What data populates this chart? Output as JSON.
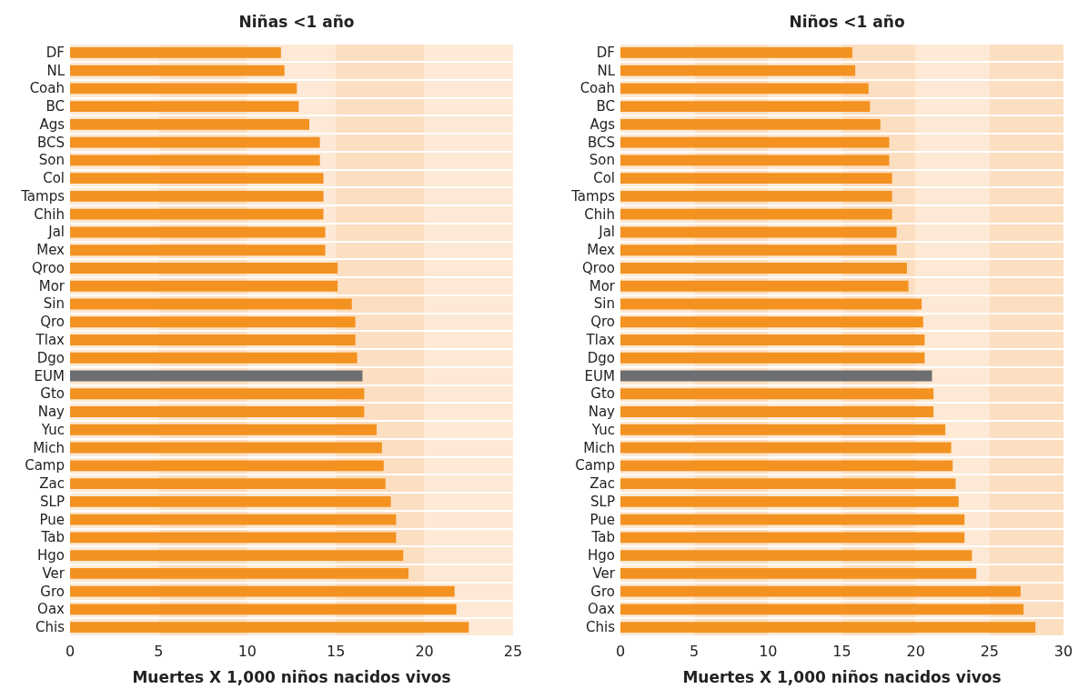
{
  "chart_data": [
    {
      "type": "bar",
      "orientation": "horizontal",
      "title": "Niñas <1 año",
      "xlabel": "Muertes X 1,000 niños nacidos vivos",
      "categories": [
        "DF",
        "NL",
        "Coah",
        "BC",
        "Ags",
        "BCS",
        "Son",
        "Col",
        "Tamps",
        "Chih",
        "Jal",
        "Mex",
        "Qroo",
        "Mor",
        "Sin",
        "Qro",
        "Tlax",
        "Dgo",
        "EUM",
        "Gto",
        "Nay",
        "Yuc",
        "Mich",
        "Camp",
        "Zac",
        "SLP",
        "Pue",
        "Tab",
        "Hgo",
        "Ver",
        "Gro",
        "Oax",
        "Chis"
      ],
      "values": [
        11.9,
        12.1,
        12.8,
        12.9,
        13.5,
        14.1,
        14.1,
        14.3,
        14.3,
        14.3,
        14.4,
        14.4,
        15.1,
        15.1,
        15.9,
        16.1,
        16.1,
        16.2,
        16.5,
        16.6,
        16.6,
        17.3,
        17.6,
        17.7,
        17.8,
        18.1,
        18.4,
        18.4,
        18.8,
        19.1,
        21.7,
        21.8,
        22.5
      ],
      "colors": [
        "#f39220",
        "#f39220",
        "#f39220",
        "#f39220",
        "#f39220",
        "#f39220",
        "#f39220",
        "#f39220",
        "#f39220",
        "#f39220",
        "#f39220",
        "#f39220",
        "#f39220",
        "#f39220",
        "#f39220",
        "#f39220",
        "#f39220",
        "#f39220",
        "#6d6e71",
        "#f39220",
        "#f39220",
        "#f39220",
        "#f39220",
        "#f39220",
        "#f39220",
        "#f39220",
        "#f39220",
        "#f39220",
        "#f39220",
        "#f39220",
        "#f39220",
        "#f39220",
        "#f39220"
      ],
      "xlim": [
        0,
        25
      ],
      "xticks": [
        0,
        5,
        10,
        15,
        20,
        25
      ],
      "grid": true,
      "bands": [
        {
          "axis": "x",
          "from": 0,
          "to": 5,
          "color": "#fde9d5"
        },
        {
          "axis": "x",
          "from": 5,
          "to": 10,
          "color": "#fcdec0"
        },
        {
          "axis": "x",
          "from": 10,
          "to": 15,
          "color": "#fde9d5"
        },
        {
          "axis": "x",
          "from": 15,
          "to": 20,
          "color": "#fcdec0"
        },
        {
          "axis": "x",
          "from": 20,
          "to": 25,
          "color": "#fde9d5"
        }
      ]
    },
    {
      "type": "bar",
      "orientation": "horizontal",
      "title": "Niños <1 año",
      "xlabel": "Muertes X 1,000 niños nacidos vivos",
      "categories": [
        "DF",
        "NL",
        "Coah",
        "BC",
        "Ags",
        "BCS",
        "Son",
        "Col",
        "Tamps",
        "Chih",
        "Jal",
        "Mex",
        "Qroo",
        "Mor",
        "Sin",
        "Qro",
        "Tlax",
        "Dgo",
        "EUM",
        "Gto",
        "Nay",
        "Yuc",
        "Mich",
        "Camp",
        "Zac",
        "SLP",
        "Pue",
        "Tab",
        "Hgo",
        "Ver",
        "Gro",
        "Oax",
        "Chis"
      ],
      "values": [
        15.7,
        15.9,
        16.8,
        16.9,
        17.6,
        18.2,
        18.2,
        18.4,
        18.4,
        18.4,
        18.7,
        18.7,
        19.4,
        19.5,
        20.4,
        20.5,
        20.6,
        20.6,
        21.1,
        21.2,
        21.2,
        22.0,
        22.4,
        22.5,
        22.7,
        22.9,
        23.3,
        23.3,
        23.8,
        24.1,
        27.1,
        27.3,
        28.1
      ],
      "colors": [
        "#f39220",
        "#f39220",
        "#f39220",
        "#f39220",
        "#f39220",
        "#f39220",
        "#f39220",
        "#f39220",
        "#f39220",
        "#f39220",
        "#f39220",
        "#f39220",
        "#f39220",
        "#f39220",
        "#f39220",
        "#f39220",
        "#f39220",
        "#f39220",
        "#6d6e71",
        "#f39220",
        "#f39220",
        "#f39220",
        "#f39220",
        "#f39220",
        "#f39220",
        "#f39220",
        "#f39220",
        "#f39220",
        "#f39220",
        "#f39220",
        "#f39220",
        "#f39220",
        "#f39220"
      ],
      "xlim": [
        0,
        30
      ],
      "xticks": [
        0,
        5,
        10,
        15,
        20,
        25,
        30
      ],
      "grid": true,
      "bands": [
        {
          "axis": "x",
          "from": 0,
          "to": 5,
          "color": "#fde9d5"
        },
        {
          "axis": "x",
          "from": 5,
          "to": 10,
          "color": "#fcdec0"
        },
        {
          "axis": "x",
          "from": 10,
          "to": 15,
          "color": "#fde9d5"
        },
        {
          "axis": "x",
          "from": 15,
          "to": 20,
          "color": "#fcdec0"
        },
        {
          "axis": "x",
          "from": 20,
          "to": 25,
          "color": "#fde9d5"
        },
        {
          "axis": "x",
          "from": 25,
          "to": 30,
          "color": "#fcdec0"
        }
      ]
    }
  ]
}
